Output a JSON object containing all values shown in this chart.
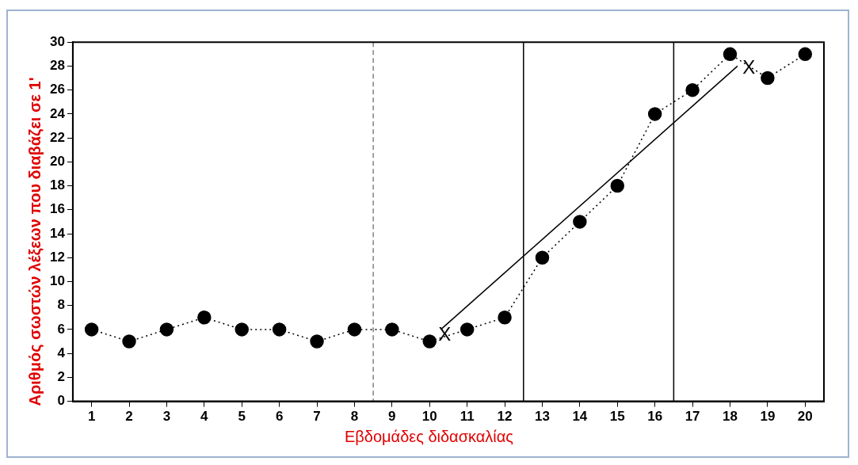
{
  "chart_data": {
    "type": "line",
    "xlabel": "Εβδομάδες διδασκαλίας",
    "ylabel": "Αριθμός σωστών λέξεων που διαβάζει σε 1'",
    "x": [
      1,
      2,
      3,
      4,
      5,
      6,
      7,
      8,
      9,
      10,
      11,
      12,
      13,
      14,
      15,
      16,
      17,
      18,
      19,
      20
    ],
    "series": [
      {
        "color": "#000000",
        "values": [
          6,
          5,
          6,
          7,
          6,
          6,
          5,
          6,
          6,
          5,
          6,
          7,
          12,
          15,
          18,
          24,
          26,
          29,
          27,
          29
        ],
        "marker": "circle",
        "line_style": "dotted"
      },
      {
        "color": "#000000",
        "x": [
          10.3,
          18.2
        ],
        "values": [
          6,
          28
        ],
        "marker": "none",
        "line_style": "solid"
      }
    ],
    "xlim": [
      0.5,
      20.5
    ],
    "xticks": [
      1,
      2,
      3,
      4,
      5,
      6,
      7,
      8,
      9,
      10,
      11,
      12,
      13,
      14,
      15,
      16,
      17,
      18,
      19,
      20
    ],
    "ylim": [
      0,
      30
    ],
    "yticks": [
      0,
      2,
      4,
      6,
      8,
      10,
      12,
      14,
      16,
      18,
      20,
      22,
      24,
      26,
      28,
      30
    ],
    "ref_lines": [
      {
        "axis": "x",
        "value": 8.5,
        "line_style": "dashed",
        "color": "#808080"
      },
      {
        "axis": "x",
        "value": 12.5,
        "line_style": "solid",
        "color": "#000000"
      },
      {
        "axis": "x",
        "value": 16.5,
        "line_style": "solid",
        "color": "#000000"
      }
    ],
    "annotations": [
      {
        "text": "X",
        "x": 10.4,
        "y": 5.5
      },
      {
        "text": "X",
        "x": 18.5,
        "y": 27.8
      }
    ],
    "grid": false,
    "legend": false
  }
}
